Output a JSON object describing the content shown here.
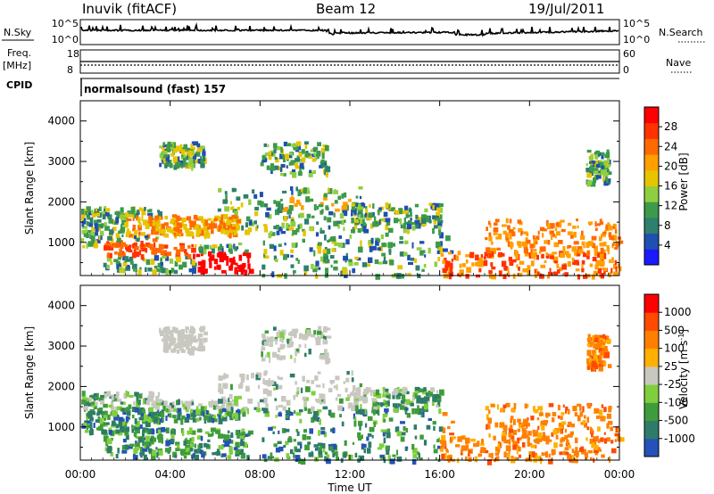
{
  "header": {
    "station": "Inuvik (fitACF)",
    "beam": "Beam 12",
    "date": "19/Jul/2011"
  },
  "panels": {
    "sky": {
      "label": "N.Sky",
      "ticks": [
        "10^5",
        "10^0"
      ],
      "right_label": "N.Search",
      "right_ticks": [
        "10^5",
        "10^0"
      ]
    },
    "freq": {
      "label_1": "Freq.",
      "label_2": "[MHz]",
      "ticks": [
        "18",
        "8"
      ],
      "right_label": "Nave",
      "right_ticks": [
        "60",
        "0"
      ]
    },
    "cpid": {
      "label": "CPID",
      "program": "normalsound (fast) 157"
    }
  },
  "chart_data": [
    {
      "type": "heatmap",
      "title": "",
      "xlabel": "Time UT",
      "ylabel": "Slant Range [km]",
      "x_ticks": [
        "00:00",
        "04:00",
        "08:00",
        "12:00",
        "16:00",
        "20:00",
        "00:00"
      ],
      "y_ticks": [
        "1000",
        "2000",
        "3000",
        "4000"
      ],
      "ylim": [
        180,
        4500
      ],
      "colorbar": {
        "label": "Power [dB]",
        "ticks": [
          "4",
          "8",
          "12",
          "16",
          "20",
          "24",
          "28"
        ],
        "colors": [
          "#1a1aff",
          "#1f4fb0",
          "#2e7f6e",
          "#3c9a4a",
          "#8fcf3f",
          "#e7c400",
          "#ff9f00",
          "#ff6a00",
          "#ff3200",
          "#ff0000"
        ],
        "range": [
          0,
          32
        ]
      }
    },
    {
      "type": "heatmap",
      "title": "",
      "xlabel": "Time UT",
      "ylabel": "Slant Range [km]",
      "x_ticks": [
        "00:00",
        "04:00",
        "08:00",
        "12:00",
        "16:00",
        "20:00",
        "00:00"
      ],
      "y_ticks": [
        "1000",
        "2000",
        "3000",
        "4000"
      ],
      "ylim": [
        180,
        4500
      ],
      "colorbar": {
        "label": "Velocity [m s",
        "label_sup": "-1",
        "label_end": "]",
        "ticks": [
          "1000",
          "500",
          "100",
          "25",
          "-25",
          "-100",
          "-500",
          "-1000"
        ],
        "colors": [
          "#2452b8",
          "#2e7b6a",
          "#3f9c3a",
          "#7fcf3c",
          "#c8c8c0",
          "#ffb000",
          "#ff8000",
          "#ff4a00",
          "#ff0000"
        ]
      }
    }
  ],
  "time_axis_label": "Time UT"
}
